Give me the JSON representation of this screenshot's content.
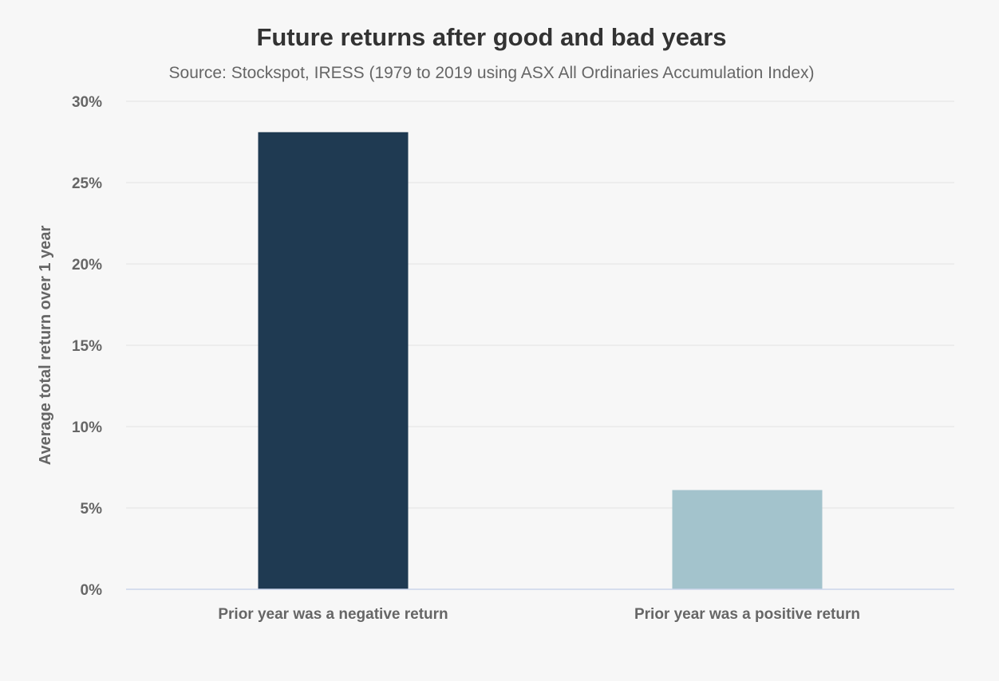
{
  "chart_data": {
    "type": "bar",
    "title": "Future returns after good and bad years",
    "subtitle": "Source: Stockspot, IRESS (1979 to 2019 using ASX All Ordinaries Accumulation Index)",
    "xlabel": "",
    "ylabel": "Average total return over 1 year",
    "categories": [
      "Prior year was a negative return",
      "Prior year was a positive return"
    ],
    "values": [
      28.1,
      6.1
    ],
    "colors": [
      "#1f3a52",
      "#a3c3cc"
    ],
    "ylim": [
      0,
      30
    ],
    "yticks": [
      0,
      5,
      10,
      15,
      20,
      25,
      30
    ],
    "ytick_labels": [
      "0%",
      "5%",
      "10%",
      "15%",
      "20%",
      "25%",
      "30%"
    ],
    "grid": true,
    "legend": "none"
  }
}
